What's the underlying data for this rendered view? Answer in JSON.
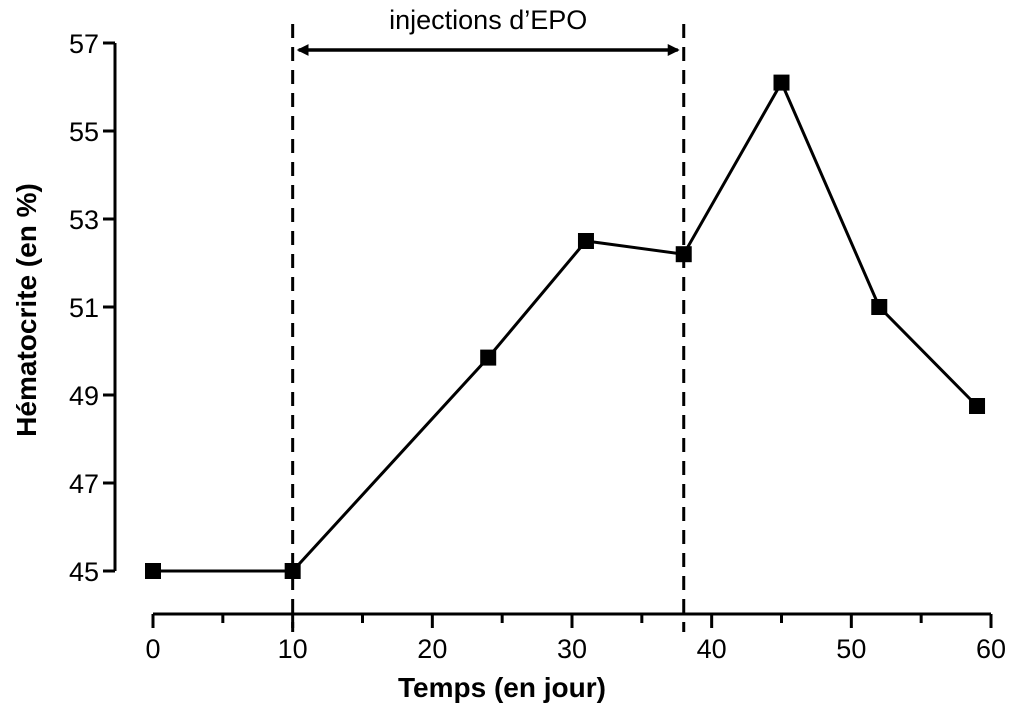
{
  "chart_data": {
    "type": "line",
    "title": "",
    "xlabel": "Temps (en jour)",
    "ylabel": "Hématocrite (en %)",
    "xlim": [
      0,
      60
    ],
    "ylim": [
      45,
      57
    ],
    "x_ticks": [
      0,
      10,
      20,
      30,
      40,
      50,
      60
    ],
    "y_ticks": [
      45,
      47,
      49,
      51,
      53,
      55,
      57
    ],
    "grid": false,
    "series": [
      {
        "x": [
          0,
          10,
          24,
          31,
          38,
          45,
          52,
          59
        ],
        "y": [
          45.0,
          45.0,
          49.85,
          52.5,
          52.2,
          56.1,
          51.0,
          48.75
        ]
      }
    ],
    "annotations": [
      {
        "type": "interval",
        "text": "injections d’EPO",
        "x_start": 10,
        "x_end": 38
      }
    ],
    "colors": {
      "line": "#000000",
      "marker": "#000000"
    },
    "marker": "square"
  }
}
